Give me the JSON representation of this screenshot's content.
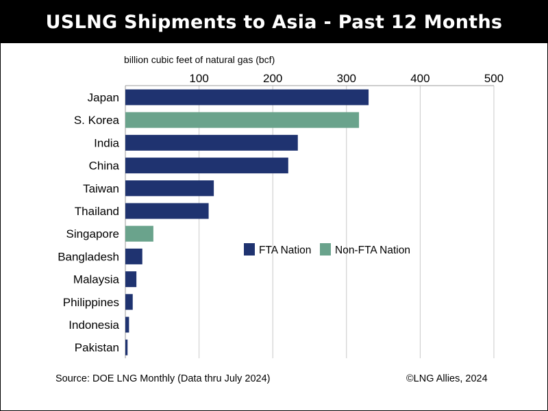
{
  "title": "USLNG Shipments to Asia - Past 12 Months",
  "source": "Source: DOE LNG Monthly (Data thru July 2024)",
  "credit": "©LNG Allies, 2024",
  "colors": {
    "fta": "#1f3370",
    "non_fta": "#6aa38c",
    "grid": "#c8c8c8"
  },
  "chart_data": {
    "type": "bar",
    "orientation": "horizontal",
    "title": "USLNG Shipments to Asia - Past 12 Months",
    "unit_label": "billion cubic feet of natural gas (bcf)",
    "xlim": [
      0,
      500
    ],
    "ticks": [
      100,
      200,
      300,
      400,
      500
    ],
    "tick_labels": [
      "100",
      "200",
      "300",
      "400",
      "500"
    ],
    "grid": true,
    "x_axis_position": "top",
    "legend_position": "center-right",
    "categories": [
      "Japan",
      "S. Korea",
      "India",
      "China",
      "Taiwan",
      "Thailand",
      "Singapore",
      "Bangladesh",
      "Malaysia",
      "Philippines",
      "Indonesia",
      "Pakistan"
    ],
    "values": [
      330,
      317,
      234,
      221,
      120,
      113,
      38,
      23,
      15,
      10,
      5,
      3
    ],
    "groups": [
      "FTA Nation",
      "Non-FTA Nation",
      "FTA Nation",
      "FTA Nation",
      "FTA Nation",
      "FTA Nation",
      "Non-FTA Nation",
      "FTA Nation",
      "FTA Nation",
      "FTA Nation",
      "FTA Nation",
      "FTA Nation"
    ],
    "legend": [
      {
        "name": "FTA Nation",
        "color": "#1f3370"
      },
      {
        "name": "Non-FTA Nation",
        "color": "#6aa38c"
      }
    ]
  }
}
